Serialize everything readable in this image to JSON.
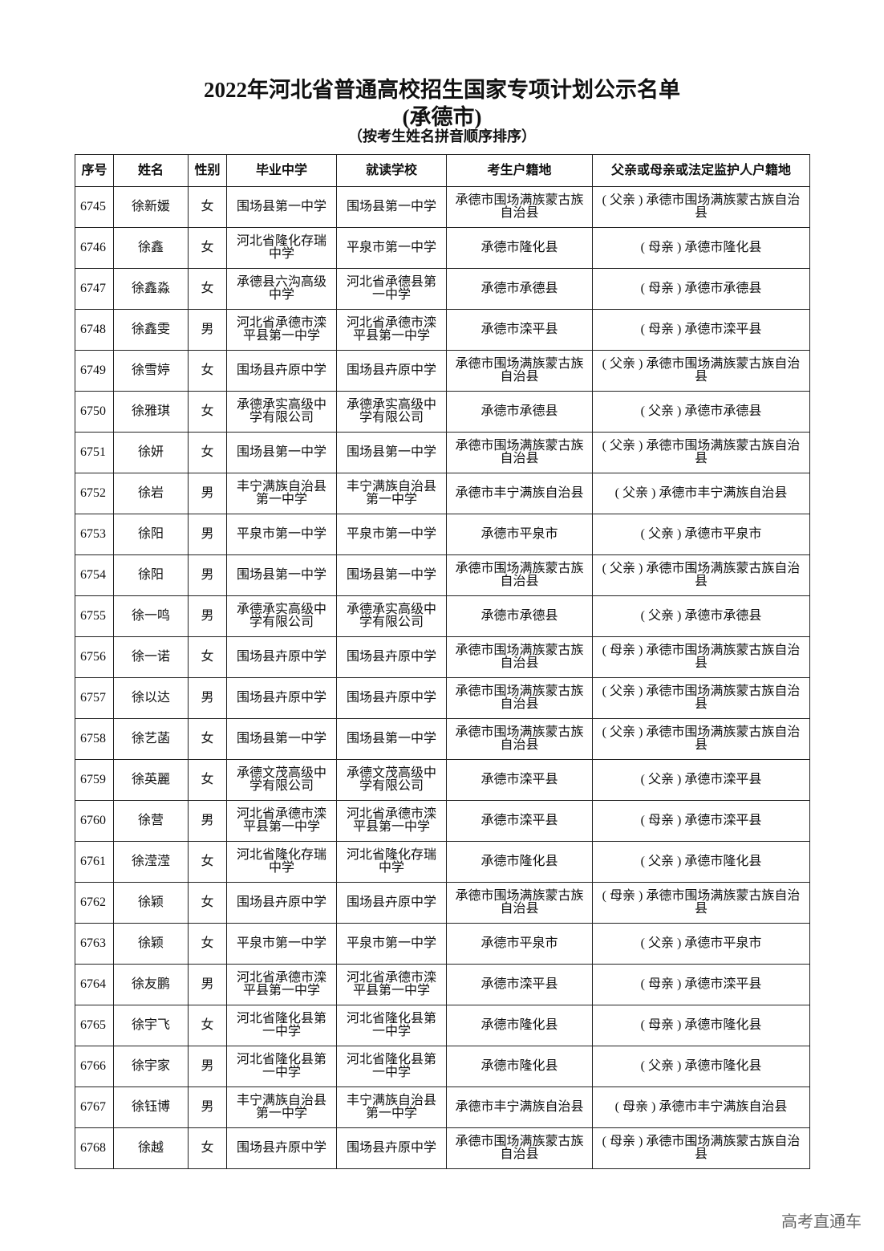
{
  "title": "2022年河北省普通高校招生国家专项计划公示名单",
  "subtitle": "(承德市)",
  "note": "（按考生姓名拼音顺序排序）",
  "headers": [
    "序号",
    "姓名",
    "性别",
    "毕业中学",
    "就读学校",
    "考生户籍地",
    "父亲或母亲或法定监护人户籍地"
  ],
  "rows": [
    [
      "6745",
      "徐新媛",
      "女",
      "围场县第一中学",
      "围场县第一中学",
      "承德市围场满族蒙古族自治县",
      "( 父亲 ) 承德市围场满族蒙古族自治县"
    ],
    [
      "6746",
      "徐鑫",
      "女",
      "河北省隆化存瑞中学",
      "平泉市第一中学",
      "承德市隆化县",
      "( 母亲 ) 承德市隆化县"
    ],
    [
      "6747",
      "徐鑫淼",
      "女",
      "承德县六沟高级中学",
      "河北省承德县第一中学",
      "承德市承德县",
      "( 母亲 ) 承德市承德县"
    ],
    [
      "6748",
      "徐鑫雯",
      "男",
      "河北省承德市滦平县第一中学",
      "河北省承德市滦平县第一中学",
      "承德市滦平县",
      "( 母亲 ) 承德市滦平县"
    ],
    [
      "6749",
      "徐雪婷",
      "女",
      "围场县卉原中学",
      "围场县卉原中学",
      "承德市围场满族蒙古族自治县",
      "( 父亲 ) 承德市围场满族蒙古族自治县"
    ],
    [
      "6750",
      "徐雅琪",
      "女",
      "承德承实高级中学有限公司",
      "承德承实高级中学有限公司",
      "承德市承德县",
      "( 父亲 ) 承德市承德县"
    ],
    [
      "6751",
      "徐妍",
      "女",
      "围场县第一中学",
      "围场县第一中学",
      "承德市围场满族蒙古族自治县",
      "( 父亲 ) 承德市围场满族蒙古族自治县"
    ],
    [
      "6752",
      "徐岩",
      "男",
      "丰宁满族自治县第一中学",
      "丰宁满族自治县第一中学",
      "承德市丰宁满族自治县",
      "( 父亲 ) 承德市丰宁满族自治县"
    ],
    [
      "6753",
      "徐阳",
      "男",
      "平泉市第一中学",
      "平泉市第一中学",
      "承德市平泉市",
      "( 父亲 ) 承德市平泉市"
    ],
    [
      "6754",
      "徐阳",
      "男",
      "围场县第一中学",
      "围场县第一中学",
      "承德市围场满族蒙古族自治县",
      "( 父亲 ) 承德市围场满族蒙古族自治县"
    ],
    [
      "6755",
      "徐一鸣",
      "男",
      "承德承实高级中学有限公司",
      "承德承实高级中学有限公司",
      "承德市承德县",
      "( 父亲 ) 承德市承德县"
    ],
    [
      "6756",
      "徐一诺",
      "女",
      "围场县卉原中学",
      "围场县卉原中学",
      "承德市围场满族蒙古族自治县",
      "( 母亲 ) 承德市围场满族蒙古族自治县"
    ],
    [
      "6757",
      "徐以达",
      "男",
      "围场县卉原中学",
      "围场县卉原中学",
      "承德市围场满族蒙古族自治县",
      "( 父亲 ) 承德市围场满族蒙古族自治县"
    ],
    [
      "6758",
      "徐艺菡",
      "女",
      "围场县第一中学",
      "围场县第一中学",
      "承德市围场满族蒙古族自治县",
      "( 父亲 ) 承德市围场满族蒙古族自治县"
    ],
    [
      "6759",
      "徐英麗",
      "女",
      "承德文茂高级中学有限公司",
      "承德文茂高级中学有限公司",
      "承德市滦平县",
      "( 父亲 ) 承德市滦平县"
    ],
    [
      "6760",
      "徐营",
      "男",
      "河北省承德市滦平县第一中学",
      "河北省承德市滦平县第一中学",
      "承德市滦平县",
      "( 母亲 ) 承德市滦平县"
    ],
    [
      "6761",
      "徐滢滢",
      "女",
      "河北省隆化存瑞中学",
      "河北省隆化存瑞中学",
      "承德市隆化县",
      "( 父亲 ) 承德市隆化县"
    ],
    [
      "6762",
      "徐颖",
      "女",
      "围场县卉原中学",
      "围场县卉原中学",
      "承德市围场满族蒙古族自治县",
      "( 母亲 ) 承德市围场满族蒙古族自治县"
    ],
    [
      "6763",
      "徐颖",
      "女",
      "平泉市第一中学",
      "平泉市第一中学",
      "承德市平泉市",
      "( 父亲 ) 承德市平泉市"
    ],
    [
      "6764",
      "徐友鹏",
      "男",
      "河北省承德市滦平县第一中学",
      "河北省承德市滦平县第一中学",
      "承德市滦平县",
      "( 母亲 ) 承德市滦平县"
    ],
    [
      "6765",
      "徐宇飞",
      "女",
      "河北省隆化县第一中学",
      "河北省隆化县第一中学",
      "承德市隆化县",
      "( 母亲 ) 承德市隆化县"
    ],
    [
      "6766",
      "徐宇家",
      "男",
      "河北省隆化县第一中学",
      "河北省隆化县第一中学",
      "承德市隆化县",
      "( 父亲 ) 承德市隆化县"
    ],
    [
      "6767",
      "徐钰博",
      "男",
      "丰宁满族自治县第一中学",
      "丰宁满族自治县第一中学",
      "承德市丰宁满族自治县",
      "( 母亲 ) 承德市丰宁满族自治县"
    ],
    [
      "6768",
      "徐越",
      "女",
      "围场县卉原中学",
      "围场县卉原中学",
      "承德市围场满族蒙古族自治县",
      "( 母亲 ) 承德市围场满族蒙古族自治县"
    ]
  ],
  "watermark": "高考直通车"
}
